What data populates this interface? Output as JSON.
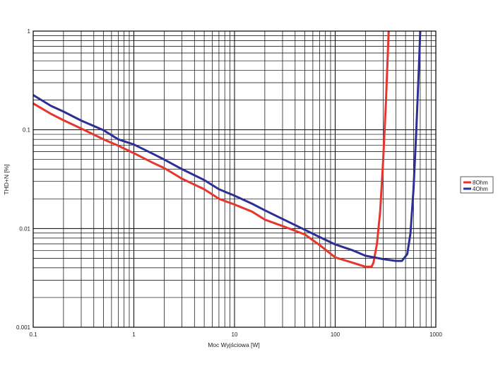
{
  "chart_data": {
    "type": "line",
    "xlabel": "Moc Wyjściowa [W]",
    "ylabel": "THD+N [%]",
    "x_scale": "log",
    "y_scale": "log",
    "xlim": [
      0.1,
      1000
    ],
    "ylim": [
      0.001,
      1
    ],
    "x_ticks": [
      "0.1",
      "1",
      "10",
      "100",
      "1000"
    ],
    "y_ticks": [
      "0.001",
      "0.01",
      "0.1",
      "1"
    ],
    "grid": true,
    "legend_position": "right",
    "series": [
      {
        "name": "8Ohm",
        "color": "#e8352e",
        "points": [
          [
            0.1,
            0.185
          ],
          [
            0.15,
            0.145
          ],
          [
            0.2,
            0.125
          ],
          [
            0.3,
            0.103
          ],
          [
            0.5,
            0.08
          ],
          [
            0.7,
            0.069
          ],
          [
            1,
            0.058
          ],
          [
            1.5,
            0.047
          ],
          [
            2,
            0.041
          ],
          [
            3,
            0.032
          ],
          [
            5,
            0.025
          ],
          [
            7,
            0.02
          ],
          [
            10,
            0.0175
          ],
          [
            15,
            0.0148
          ],
          [
            20,
            0.0123
          ],
          [
            30,
            0.0106
          ],
          [
            50,
            0.0087
          ],
          [
            70,
            0.0068
          ],
          [
            100,
            0.0051
          ],
          [
            150,
            0.0045
          ],
          [
            200,
            0.0041
          ],
          [
            230,
            0.0041
          ],
          [
            240,
            0.0045
          ],
          [
            260,
            0.007
          ],
          [
            280,
            0.015
          ],
          [
            300,
            0.05
          ],
          [
            320,
            0.2
          ],
          [
            340,
            1.0
          ]
        ]
      },
      {
        "name": "4Ohm",
        "color": "#2e2f95",
        "points": [
          [
            0.1,
            0.225
          ],
          [
            0.15,
            0.175
          ],
          [
            0.2,
            0.153
          ],
          [
            0.3,
            0.124
          ],
          [
            0.5,
            0.099
          ],
          [
            0.7,
            0.08
          ],
          [
            1,
            0.071
          ],
          [
            1.5,
            0.058
          ],
          [
            2,
            0.05
          ],
          [
            3,
            0.04
          ],
          [
            5,
            0.031
          ],
          [
            7,
            0.025
          ],
          [
            10,
            0.0215
          ],
          [
            15,
            0.0178
          ],
          [
            20,
            0.0153
          ],
          [
            30,
            0.0125
          ],
          [
            50,
            0.0097
          ],
          [
            70,
            0.0082
          ],
          [
            100,
            0.0069
          ],
          [
            150,
            0.006
          ],
          [
            200,
            0.0053
          ],
          [
            300,
            0.0049
          ],
          [
            400,
            0.0047
          ],
          [
            460,
            0.0047
          ],
          [
            520,
            0.0055
          ],
          [
            560,
            0.009
          ],
          [
            600,
            0.025
          ],
          [
            640,
            0.1
          ],
          [
            680,
            0.45
          ],
          [
            700,
            1.0
          ]
        ]
      }
    ]
  }
}
